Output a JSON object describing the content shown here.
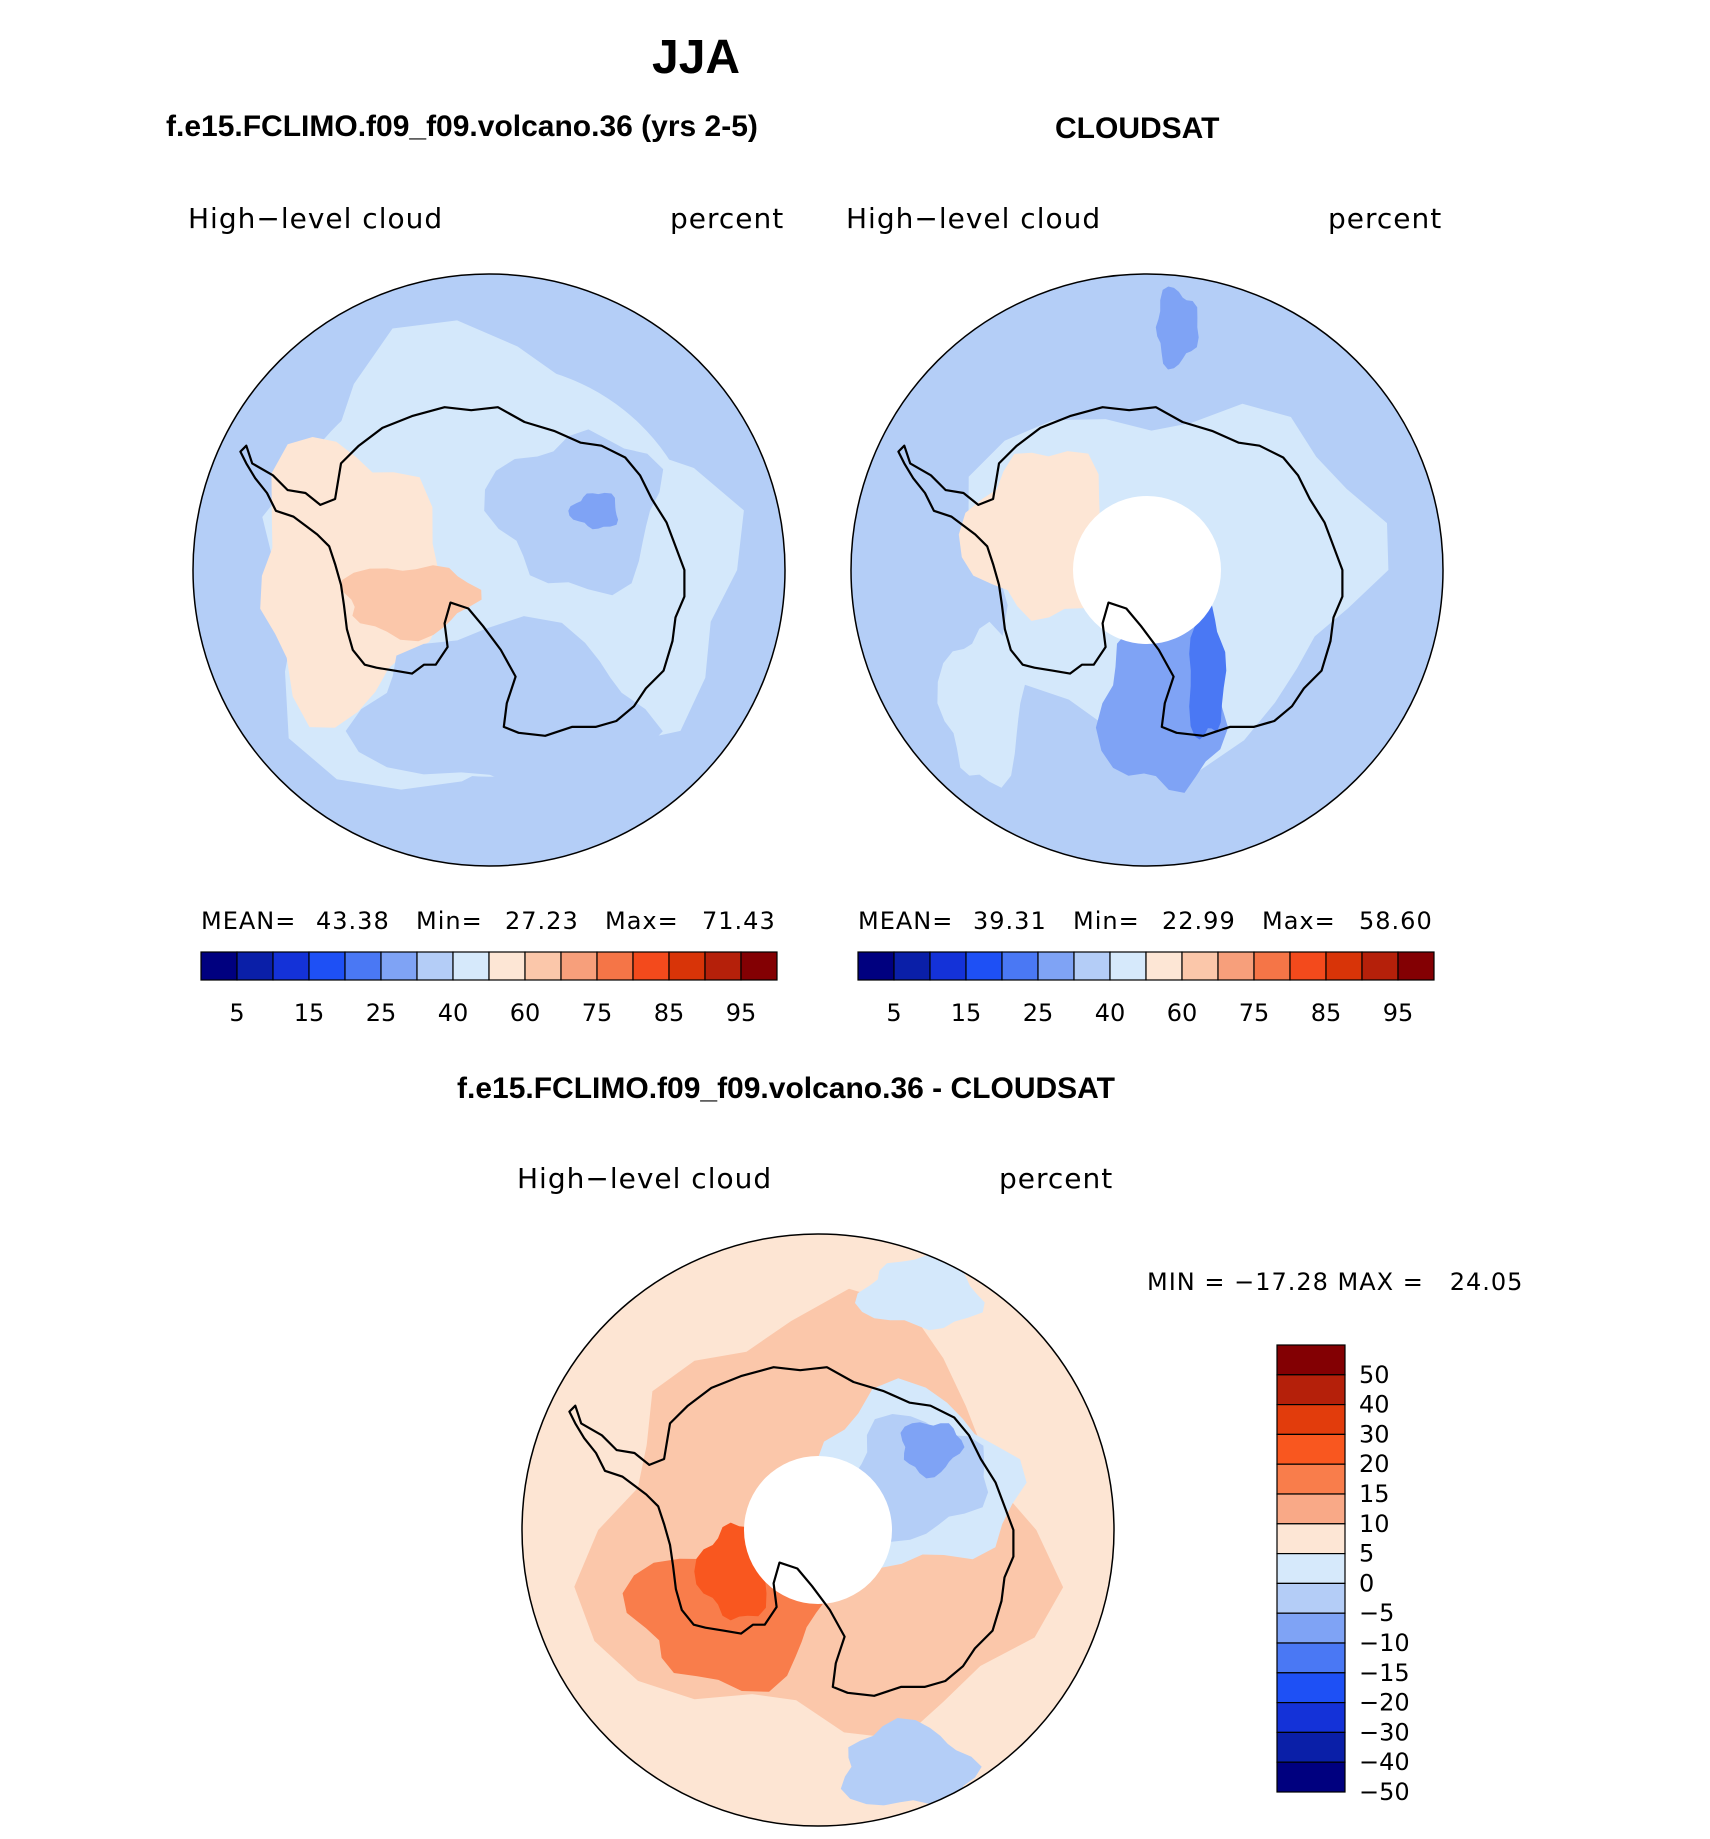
{
  "figure": {
    "title": "JJA",
    "colors": {
      "continent_outline": "#000000",
      "hole": "#ffffff"
    }
  },
  "panels": [
    {
      "title": "f.e15.FCLIMO.f09_f09.volcano.36 (yrs 2-5)",
      "variable": "High−level cloud",
      "units": "percent",
      "stats": {
        "mean_label": "MEAN=",
        "mean": "43.38",
        "min_label": "Min=",
        "min": "27.23",
        "max_label": "Max=",
        "max": "71.43"
      },
      "background_color": "#d4e8fb"
    },
    {
      "title": "CLOUDSAT",
      "variable": "High−level cloud",
      "units": "percent",
      "stats": {
        "mean_label": "MEAN=",
        "mean": "39.31",
        "min_label": "Min=",
        "min": "22.99",
        "max_label": "Max=",
        "max": "58.60"
      },
      "background_color": "#b4cef7"
    },
    {
      "title": "f.e15.FCLIMO.f09_f09.volcano.36 - CLOUDSAT",
      "variable": "High−level cloud",
      "units": "percent",
      "stats_text": "MIN = −17.28 MAX =   24.05",
      "background_color": "#fde5d3"
    }
  ],
  "colorbar_abs": {
    "colors": [
      "#00007f",
      "#0a1fa8",
      "#1432d8",
      "#1e50f5",
      "#4a78f4",
      "#7fa3f5",
      "#b4cdf7",
      "#d6e9fb",
      "#fde6d5",
      "#fbc7aa",
      "#f79f7b",
      "#f57547",
      "#f34a1c",
      "#d83408",
      "#b5200a",
      "#830003"
    ],
    "labels": [
      "5",
      "15",
      "25",
      "40",
      "60",
      "75",
      "85",
      "95"
    ]
  },
  "colorbar_diff": {
    "colors": [
      "#830003",
      "#b5200a",
      "#e23c0c",
      "#f9571f",
      "#f97d4b",
      "#f9a987",
      "#fde6d5",
      "#d6e9fb",
      "#b4cdf7",
      "#7fa3f5",
      "#4a78f4",
      "#1e50f5",
      "#1432d8",
      "#0a1fa8",
      "#00007f"
    ],
    "labels": [
      "50",
      "40",
      "30",
      "20",
      "15",
      "10",
      "5",
      "0",
      "−5",
      "−10",
      "−15",
      "−20",
      "−30",
      "−40",
      "−50"
    ]
  },
  "maps": [
    {
      "contours": [
        {
          "color": "#b4cef7",
          "name": "outer-ring-region",
          "kind": "ring"
        },
        {
          "color": "#d4e8fb",
          "name": "inner-light-region"
        },
        {
          "color": "#fde6d5",
          "name": "west-antarctic-peach-region"
        },
        {
          "color": "#fbc7aa",
          "name": "peninsula-salmon-region"
        },
        {
          "color": "#b4cef7",
          "name": "east-antarctic-blue-region"
        },
        {
          "color": "#7fa3f5",
          "name": "east-antarctic-core-region"
        },
        {
          "color": "#b4cef7",
          "name": "ross-sea-blue-region"
        }
      ]
    },
    {
      "contours": [
        {
          "color": "#d4e8fb",
          "name": "inner-light-region"
        },
        {
          "color": "#d4e8fb",
          "name": "pacific-light-streak"
        },
        {
          "color": "#fde6d5",
          "name": "peninsula-peach-region"
        },
        {
          "color": "#7fa3f5",
          "name": "ross-sea-medium-region"
        },
        {
          "color": "#4a78f4",
          "name": "ross-sea-core-region"
        },
        {
          "color": "#7fa3f5",
          "name": "north-medium-patch"
        }
      ]
    },
    {
      "contours": [
        {
          "color": "#fbc7aa",
          "name": "salmon-band-region"
        },
        {
          "color": "#d4e8fb",
          "name": "east-antarctic-light-region"
        },
        {
          "color": "#b4cef7",
          "name": "east-antarctic-blue-region"
        },
        {
          "color": "#7fa3f5",
          "name": "east-antarctic-core-region"
        },
        {
          "color": "#f97d4b",
          "name": "ross-ice-shelf-orange-region"
        },
        {
          "color": "#f9571f",
          "name": "ross-ice-shelf-red-region"
        },
        {
          "color": "#d4e8fb",
          "name": "north-light-patch"
        },
        {
          "color": "#b4cef7",
          "name": "south-blue-patch"
        }
      ]
    }
  ]
}
